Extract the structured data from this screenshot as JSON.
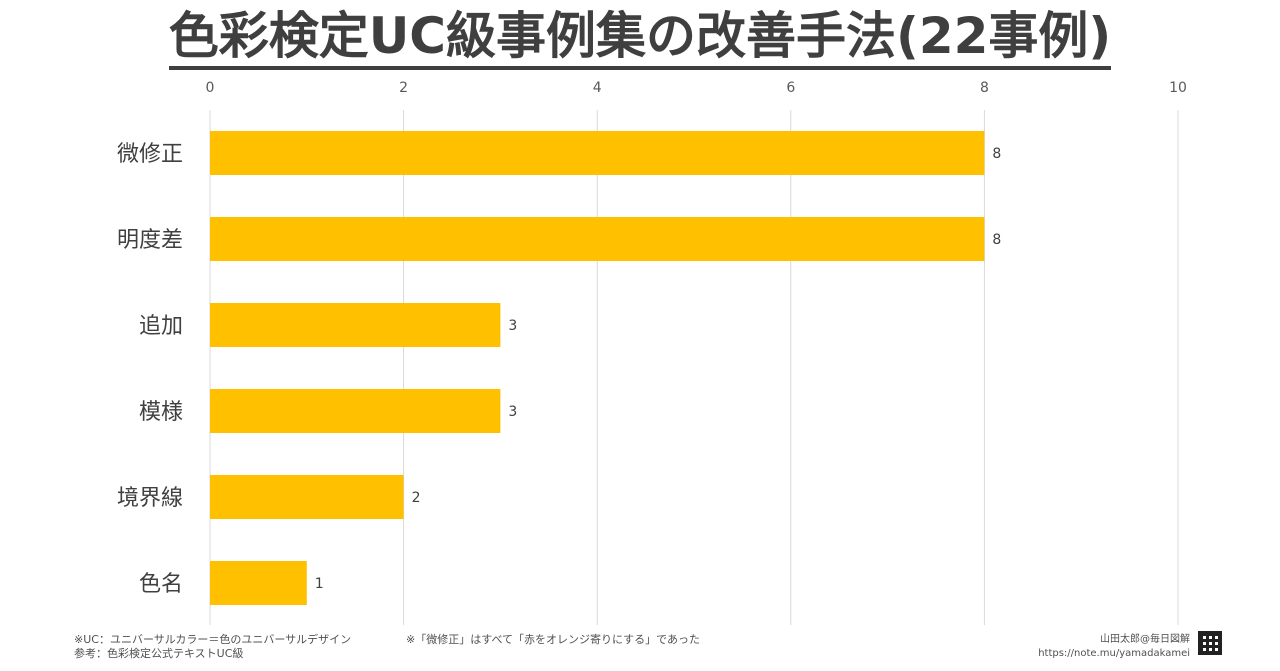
{
  "title": "色彩検定UC級事例集の改善手法(22事例)",
  "chart_data": {
    "type": "bar",
    "orientation": "horizontal",
    "title": "色彩検定UC級事例集の改善手法(22事例)",
    "categories": [
      "微修正",
      "明度差",
      "追加",
      "模様",
      "境界線",
      "色名"
    ],
    "values": [
      8,
      8,
      3,
      3,
      2,
      1
    ],
    "xlim": [
      0,
      10
    ],
    "xticks": [
      0,
      2,
      4,
      6,
      8,
      10
    ],
    "xlabel": "",
    "ylabel": "",
    "axis_position": "top",
    "grid": true,
    "legend": "none",
    "data_labels": true,
    "bar_color": "#FFC000",
    "grid_color": "#D9D9D9"
  },
  "footer": {
    "note_uc": "※UC：ユニバーサルカラー＝色のユニバーサルデザイン",
    "note_source": "参考：色彩検定公式テキストUC級",
    "note_fix": "※「微修正」はすべて「赤をオレンジ寄りにする」であった",
    "author": "山田太郎@毎日図解",
    "url": "https://note.mu/yamadakamei"
  }
}
